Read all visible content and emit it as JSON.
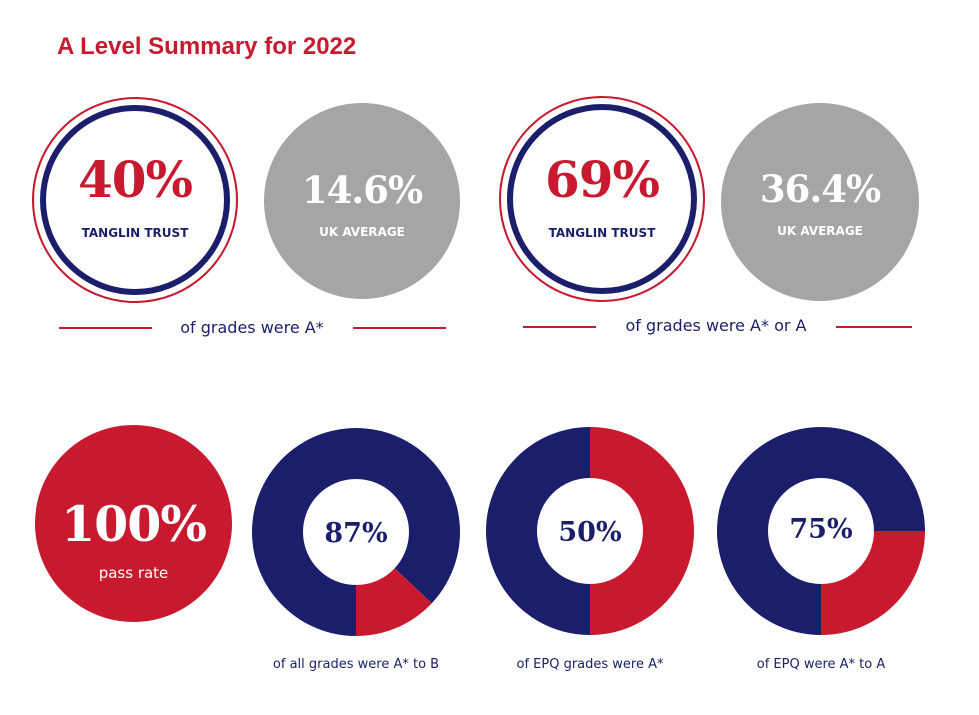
{
  "title": "A Level Summary for 2022",
  "colors": {
    "red": "#c8192e",
    "navy": "#1b1f6b",
    "grey": "#a5a5a5"
  },
  "chart_data": [
    {
      "type": "comparison",
      "caption": "of grades were A*",
      "items": [
        {
          "value": "40%",
          "label": "TANGLIN TRUST"
        },
        {
          "value": "14.6%",
          "label": "UK AVERAGE"
        }
      ]
    },
    {
      "type": "comparison",
      "caption": "of grades were A* or A",
      "items": [
        {
          "value": "69%",
          "label": "TANGLIN TRUST"
        },
        {
          "value": "36.4%",
          "label": "UK AVERAGE"
        }
      ]
    },
    {
      "type": "stat",
      "value": "100%",
      "label": "pass rate"
    },
    {
      "type": "pie",
      "value": 87,
      "value_label": "87%",
      "caption": "of all grades were A* to B"
    },
    {
      "type": "pie",
      "value": 50,
      "value_label": "50%",
      "caption": "of EPQ grades were A*"
    },
    {
      "type": "pie",
      "value": 75,
      "value_label": "75%",
      "caption": "of EPQ were A* to A"
    }
  ]
}
